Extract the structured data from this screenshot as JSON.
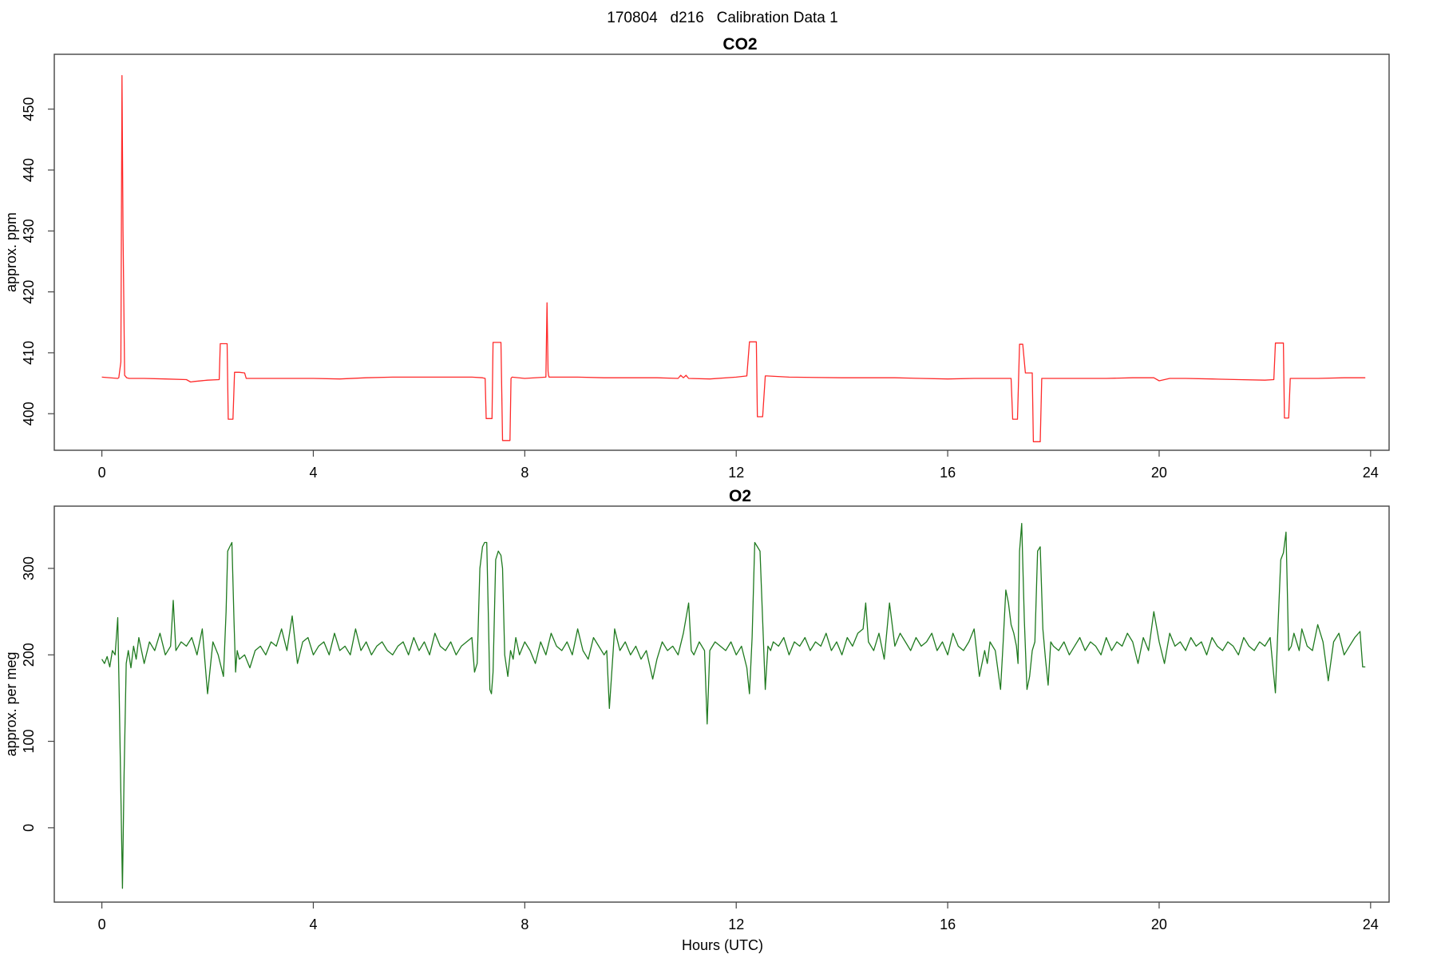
{
  "suptitle": "170804   d216   Calibration Data 1",
  "chart_data": [
    {
      "type": "line",
      "title": "CO2",
      "xlabel": "",
      "ylabel": "approx. ppm",
      "color": "#ff2a2a",
      "xlim": [
        -0.9,
        24.35
      ],
      "ylim": [
        394,
        459
      ],
      "xticks": [
        0,
        4,
        8,
        12,
        16,
        20,
        24
      ],
      "yticks": [
        400,
        410,
        420,
        430,
        440,
        450
      ],
      "series": [
        {
          "x": [
            0.0,
            0.3,
            0.32,
            0.36,
            0.38,
            0.4,
            0.43,
            0.47,
            0.52,
            0.8,
            1.2,
            1.6,
            1.68,
            1.75,
            2.0,
            2.22,
            2.24,
            2.27,
            2.32,
            2.37,
            2.39,
            2.42,
            2.48,
            2.51,
            2.54,
            2.6,
            2.7,
            2.73,
            3.0,
            3.5,
            4.0,
            4.5,
            5.0,
            5.5,
            6.0,
            6.5,
            7.0,
            7.2,
            7.25,
            7.27,
            7.3,
            7.38,
            7.4,
            7.42,
            7.47,
            7.5,
            7.55,
            7.58,
            7.6,
            7.62,
            7.72,
            7.74,
            7.76,
            8.0,
            8.4,
            8.42,
            8.44,
            8.45,
            8.46,
            8.5,
            9.0,
            9.5,
            10.0,
            10.5,
            10.9,
            10.95,
            11.0,
            11.05,
            11.1,
            11.5,
            12.0,
            12.2,
            12.25,
            12.28,
            12.32,
            12.38,
            12.4,
            12.42,
            12.47,
            12.5,
            12.55,
            12.58,
            13.0,
            14.0,
            15.0,
            15.5,
            16.0,
            16.5,
            17.0,
            17.2,
            17.23,
            17.27,
            17.32,
            17.36,
            17.4,
            17.42,
            17.47,
            17.5,
            17.55,
            17.6,
            17.62,
            17.68,
            17.73,
            17.75,
            17.78,
            18.0,
            18.5,
            19.0,
            19.5,
            19.9,
            20.0,
            20.2,
            20.5,
            21.0,
            21.5,
            22.0,
            22.17,
            22.2,
            22.25,
            22.33,
            22.35,
            22.37,
            22.42,
            22.45,
            22.48,
            22.53,
            23.0,
            23.5,
            23.9
          ],
          "y": [
            406,
            405.8,
            405.9,
            408.5,
            455.5,
            430.0,
            406.3,
            405.9,
            405.8,
            405.8,
            405.7,
            405.6,
            405.2,
            405.3,
            405.5,
            405.6,
            411.5,
            411.5,
            411.5,
            411.5,
            399.1,
            399.1,
            399.1,
            406.8,
            406.8,
            406.8,
            406.7,
            405.8,
            405.8,
            405.8,
            405.8,
            405.7,
            405.9,
            406.0,
            406.0,
            406.0,
            406.0,
            405.9,
            405.8,
            399.2,
            399.2,
            399.2,
            411.7,
            411.7,
            411.7,
            411.7,
            411.7,
            395.6,
            395.6,
            395.6,
            395.6,
            405.8,
            406.0,
            405.8,
            406.0,
            418.2,
            407.0,
            406.3,
            406.0,
            406.0,
            406.0,
            405.9,
            405.9,
            405.9,
            405.8,
            406.3,
            405.9,
            406.3,
            405.8,
            405.7,
            406.0,
            406.2,
            411.8,
            411.8,
            411.8,
            411.8,
            399.5,
            399.5,
            399.5,
            399.5,
            406.2,
            406.2,
            406.0,
            405.9,
            405.9,
            405.8,
            405.7,
            405.8,
            405.8,
            405.8,
            399.1,
            399.1,
            399.1,
            411.4,
            411.4,
            411.4,
            406.7,
            406.7,
            406.7,
            406.7,
            395.4,
            395.4,
            395.4,
            395.4,
            405.8,
            405.8,
            405.8,
            405.8,
            405.9,
            405.9,
            405.4,
            405.8,
            405.8,
            405.7,
            405.6,
            405.5,
            405.6,
            411.6,
            411.6,
            411.6,
            411.6,
            399.3,
            399.3,
            399.3,
            405.8,
            405.8,
            405.8,
            405.9,
            405.9
          ]
        }
      ]
    },
    {
      "type": "line",
      "title": "O2",
      "xlabel": "Hours (UTC)",
      "ylabel": "approx. per meg",
      "color": "#1f7a1f",
      "xlim": [
        -0.9,
        24.35
      ],
      "ylim": [
        -86,
        372
      ],
      "xticks": [
        0,
        4,
        8,
        12,
        16,
        20,
        24
      ],
      "yticks": [
        0,
        100,
        200,
        300
      ],
      "series": [
        {
          "x": [
            0.0,
            0.05,
            0.1,
            0.15,
            0.2,
            0.25,
            0.3,
            0.33,
            0.36,
            0.39,
            0.42,
            0.46,
            0.5,
            0.55,
            0.6,
            0.65,
            0.7,
            0.8,
            0.9,
            1.0,
            1.1,
            1.2,
            1.3,
            1.35,
            1.4,
            1.5,
            1.6,
            1.7,
            1.8,
            1.9,
            2.0,
            2.1,
            2.2,
            2.3,
            2.35,
            2.38,
            2.42,
            2.46,
            2.5,
            2.53,
            2.56,
            2.6,
            2.7,
            2.8,
            2.9,
            3.0,
            3.1,
            3.2,
            3.3,
            3.4,
            3.5,
            3.6,
            3.7,
            3.8,
            3.9,
            4.0,
            4.1,
            4.2,
            4.3,
            4.4,
            4.5,
            4.6,
            4.7,
            4.8,
            4.9,
            5.0,
            5.1,
            5.2,
            5.3,
            5.4,
            5.5,
            5.6,
            5.7,
            5.8,
            5.9,
            6.0,
            6.1,
            6.2,
            6.3,
            6.4,
            6.5,
            6.6,
            6.7,
            6.8,
            6.9,
            7.0,
            7.05,
            7.1,
            7.15,
            7.2,
            7.24,
            7.28,
            7.31,
            7.34,
            7.37,
            7.4,
            7.45,
            7.5,
            7.55,
            7.58,
            7.62,
            7.68,
            7.73,
            7.78,
            7.83,
            7.9,
            8.0,
            8.1,
            8.2,
            8.3,
            8.4,
            8.5,
            8.6,
            8.7,
            8.8,
            8.9,
            9.0,
            9.1,
            9.2,
            9.3,
            9.4,
            9.5,
            9.55,
            9.6,
            9.7,
            9.8,
            9.9,
            10.0,
            10.1,
            10.2,
            10.3,
            10.42,
            10.5,
            10.6,
            10.7,
            10.8,
            10.9,
            11.0,
            11.1,
            11.15,
            11.2,
            11.3,
            11.4,
            11.45,
            11.5,
            11.6,
            11.7,
            11.8,
            11.9,
            12.0,
            12.1,
            12.2,
            12.25,
            12.3,
            12.35,
            12.4,
            12.45,
            12.5,
            12.55,
            12.6,
            12.65,
            12.7,
            12.8,
            12.9,
            13.0,
            13.1,
            13.2,
            13.3,
            13.4,
            13.5,
            13.6,
            13.7,
            13.8,
            13.9,
            14.0,
            14.1,
            14.2,
            14.3,
            14.4,
            14.45,
            14.5,
            14.6,
            14.7,
            14.8,
            14.9,
            15.0,
            15.1,
            15.2,
            15.3,
            15.4,
            15.5,
            15.6,
            15.7,
            15.8,
            15.9,
            16.0,
            16.1,
            16.2,
            16.3,
            16.4,
            16.5,
            16.6,
            16.7,
            16.75,
            16.8,
            16.9,
            17.0,
            17.05,
            17.1,
            17.15,
            17.2,
            17.25,
            17.3,
            17.33,
            17.36,
            17.4,
            17.45,
            17.5,
            17.55,
            17.6,
            17.65,
            17.7,
            17.75,
            17.8,
            17.85,
            17.9,
            17.95,
            18.0,
            18.1,
            18.2,
            18.3,
            18.4,
            18.5,
            18.6,
            18.7,
            18.8,
            18.9,
            19.0,
            19.1,
            19.2,
            19.3,
            19.4,
            19.5,
            19.6,
            19.7,
            19.8,
            19.9,
            20.0,
            20.1,
            20.2,
            20.3,
            20.4,
            20.5,
            20.6,
            20.7,
            20.8,
            20.9,
            21.0,
            21.1,
            21.2,
            21.3,
            21.4,
            21.5,
            21.6,
            21.7,
            21.8,
            21.9,
            22.0,
            22.1,
            22.2,
            22.25,
            22.3,
            22.35,
            22.4,
            22.45,
            22.5,
            22.55,
            22.6,
            22.65,
            22.7,
            22.8,
            22.9,
            23.0,
            23.1,
            23.2,
            23.3,
            23.4,
            23.5,
            23.6,
            23.7,
            23.8,
            23.85,
            23.9
          ],
          "y": [
            195,
            190,
            198,
            186,
            205,
            200,
            243,
            150,
            40,
            -70,
            60,
            190,
            205,
            185,
            210,
            195,
            220,
            190,
            215,
            205,
            225,
            200,
            210,
            263,
            205,
            215,
            210,
            220,
            200,
            230,
            155,
            215,
            200,
            175,
            250,
            320,
            325,
            330,
            240,
            180,
            205,
            195,
            200,
            185,
            205,
            210,
            200,
            215,
            210,
            230,
            205,
            245,
            190,
            215,
            220,
            200,
            210,
            215,
            200,
            225,
            205,
            210,
            200,
            230,
            205,
            215,
            200,
            210,
            215,
            205,
            200,
            210,
            215,
            200,
            220,
            205,
            215,
            200,
            225,
            210,
            205,
            215,
            200,
            210,
            215,
            220,
            180,
            190,
            300,
            325,
            330,
            330,
            250,
            160,
            155,
            180,
            310,
            320,
            315,
            300,
            200,
            175,
            205,
            195,
            220,
            200,
            215,
            205,
            190,
            215,
            200,
            225,
            210,
            205,
            215,
            200,
            230,
            205,
            195,
            220,
            210,
            200,
            205,
            138,
            230,
            205,
            215,
            200,
            210,
            195,
            205,
            172,
            195,
            215,
            205,
            210,
            200,
            225,
            260,
            205,
            200,
            215,
            205,
            120,
            205,
            215,
            210,
            205,
            215,
            200,
            210,
            185,
            155,
            220,
            330,
            325,
            320,
            240,
            160,
            210,
            205,
            215,
            210,
            220,
            200,
            215,
            210,
            220,
            205,
            215,
            210,
            225,
            205,
            215,
            200,
            220,
            210,
            225,
            230,
            260,
            215,
            205,
            225,
            195,
            260,
            210,
            225,
            215,
            205,
            220,
            210,
            215,
            225,
            205,
            215,
            200,
            225,
            210,
            205,
            215,
            230,
            175,
            205,
            190,
            215,
            205,
            160,
            215,
            275,
            260,
            235,
            225,
            210,
            190,
            320,
            352,
            240,
            160,
            175,
            205,
            215,
            320,
            325,
            230,
            195,
            165,
            215,
            210,
            205,
            215,
            200,
            210,
            220,
            205,
            215,
            210,
            200,
            220,
            205,
            215,
            210,
            225,
            215,
            190,
            220,
            205,
            250,
            215,
            190,
            225,
            210,
            215,
            205,
            220,
            210,
            215,
            200,
            220,
            210,
            205,
            215,
            210,
            200,
            220,
            210,
            205,
            215,
            210,
            220,
            156,
            235,
            310,
            318,
            342,
            205,
            210,
            225,
            215,
            205,
            230,
            210,
            205,
            235,
            215,
            170,
            215,
            225,
            200,
            210,
            220,
            227,
            186,
            186
          ]
        }
      ]
    }
  ]
}
